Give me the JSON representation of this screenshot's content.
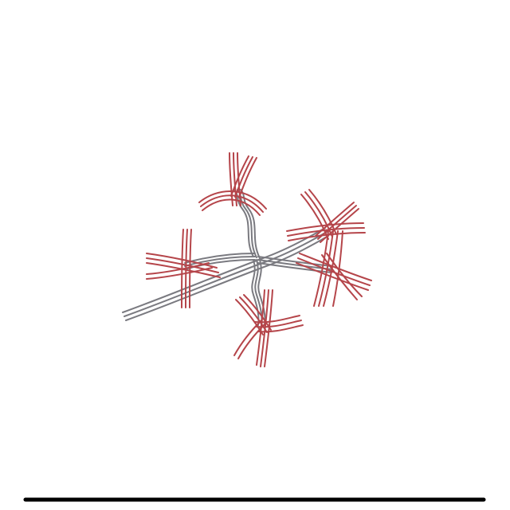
{
  "diagram": {
    "background": "#ffffff",
    "edge_color": "#7a7a80",
    "node_color": "#b5454a",
    "baseline_color": "#000000",
    "nodes": [
      {
        "id": "node-top"
      },
      {
        "id": "node-left"
      },
      {
        "id": "node-upper-right"
      },
      {
        "id": "node-right"
      },
      {
        "id": "node-bottom"
      }
    ]
  }
}
